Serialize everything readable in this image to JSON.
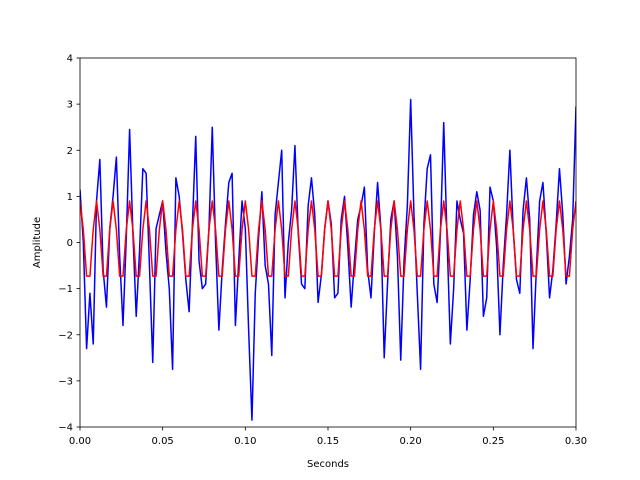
{
  "chart_data": {
    "type": "line",
    "xlabel": "Seconds",
    "ylabel": "Amplitude",
    "x": [
      0,
      0.002,
      0.004,
      0.006,
      0.008,
      0.01,
      0.012,
      0.014,
      0.016,
      0.018,
      0.02,
      0.022,
      0.024,
      0.026,
      0.028,
      0.03,
      0.032,
      0.034,
      0.036,
      0.038,
      0.04,
      0.042,
      0.044,
      0.046,
      0.048,
      0.05,
      0.052,
      0.054,
      0.056,
      0.058,
      0.06,
      0.062,
      0.064,
      0.066,
      0.068,
      0.07,
      0.072,
      0.074,
      0.076,
      0.078,
      0.08,
      0.082,
      0.084,
      0.086,
      0.088,
      0.09,
      0.092,
      0.094,
      0.096,
      0.098,
      0.1,
      0.102,
      0.104,
      0.106,
      0.108,
      0.11,
      0.112,
      0.114,
      0.116,
      0.118,
      0.12,
      0.122,
      0.124,
      0.126,
      0.128,
      0.13,
      0.132,
      0.134,
      0.136,
      0.138,
      0.14,
      0.142,
      0.144,
      0.146,
      0.148,
      0.15,
      0.152,
      0.154,
      0.156,
      0.158,
      0.16,
      0.162,
      0.164,
      0.166,
      0.168,
      0.17,
      0.172,
      0.174,
      0.176,
      0.178,
      0.18,
      0.182,
      0.184,
      0.186,
      0.188,
      0.19,
      0.192,
      0.194,
      0.196,
      0.198,
      0.2,
      0.202,
      0.204,
      0.206,
      0.208,
      0.21,
      0.212,
      0.214,
      0.216,
      0.218,
      0.22,
      0.222,
      0.224,
      0.226,
      0.228,
      0.23,
      0.232,
      0.234,
      0.236,
      0.238,
      0.24,
      0.242,
      0.244,
      0.246,
      0.248,
      0.25,
      0.252,
      0.254,
      0.256,
      0.258,
      0.26,
      0.262,
      0.264,
      0.266,
      0.268,
      0.27,
      0.272,
      0.274,
      0.276,
      0.278,
      0.28,
      0.282,
      0.284,
      0.286,
      0.288,
      0.29,
      0.292,
      0.294,
      0.296,
      0.298,
      0.3
    ],
    "series": [
      {
        "color": "#0000ff",
        "values": [
          1.15,
          0.0,
          -2.3,
          -1.1,
          -2.2,
          0.9,
          1.8,
          -0.6,
          -1.4,
          0.3,
          1.0,
          1.85,
          -0.3,
          -1.8,
          0.1,
          2.45,
          0.2,
          -1.6,
          -0.2,
          1.6,
          1.5,
          -0.5,
          -2.6,
          0.3,
          0.6,
          0.9,
          -0.2,
          -1.0,
          -2.75,
          1.4,
          1.0,
          0.2,
          -0.8,
          -1.5,
          0.4,
          2.3,
          -0.4,
          -1.0,
          -0.9,
          0.3,
          2.5,
          0.0,
          -1.9,
          -0.6,
          0.4,
          1.3,
          1.5,
          -1.8,
          -0.4,
          0.9,
          0.3,
          -1.9,
          -3.85,
          -1.1,
          0.1,
          1.1,
          -0.5,
          -0.9,
          -2.45,
          0.6,
          1.3,
          2.0,
          -1.2,
          0.0,
          0.7,
          2.1,
          0.2,
          -0.9,
          -1.0,
          0.8,
          1.4,
          0.6,
          -1.3,
          -0.7,
          0.3,
          0.9,
          0.4,
          -1.2,
          -1.1,
          0.5,
          1.0,
          -0.1,
          -1.4,
          -0.4,
          0.5,
          0.8,
          1.2,
          -0.6,
          -1.2,
          0.2,
          1.3,
          0.3,
          -2.5,
          -0.9,
          0.5,
          0.9,
          -0.3,
          -2.55,
          -0.4,
          0.8,
          3.1,
          0.6,
          -1.1,
          -2.75,
          0.4,
          1.6,
          1.9,
          -0.9,
          -1.3,
          0.2,
          2.6,
          0.1,
          -2.2,
          -1.0,
          0.9,
          0.5,
          0.2,
          -1.9,
          -0.8,
          0.6,
          1.1,
          0.7,
          -1.6,
          -1.2,
          1.2,
          0.9,
          -0.1,
          -2.0,
          -0.5,
          0.6,
          2.0,
          0.3,
          -0.8,
          -1.1,
          0.7,
          1.4,
          0.5,
          -2.3,
          -0.6,
          0.9,
          1.3,
          0.2,
          -1.2,
          -0.6,
          0.4,
          1.6,
          0.6,
          -0.9,
          -0.3,
          0.5,
          2.95
        ]
      },
      {
        "color": "#ff0000",
        "values": [
          0.9,
          0.28,
          -0.73,
          -0.73,
          0.28,
          0.9,
          0.28,
          -0.73,
          -0.73,
          0.28,
          0.9,
          0.28,
          -0.73,
          -0.73,
          0.28,
          0.9,
          0.28,
          -0.73,
          -0.73,
          0.28,
          0.9,
          0.28,
          -0.73,
          -0.73,
          0.28,
          0.9,
          0.28,
          -0.73,
          -0.73,
          0.28,
          0.9,
          0.28,
          -0.73,
          -0.73,
          0.28,
          0.9,
          0.28,
          -0.73,
          -0.73,
          0.28,
          0.9,
          0.28,
          -0.73,
          -0.73,
          0.28,
          0.9,
          0.28,
          -0.73,
          -0.73,
          0.28,
          0.9,
          0.28,
          -0.73,
          -0.73,
          0.28,
          0.9,
          0.28,
          -0.73,
          -0.73,
          0.28,
          0.9,
          0.28,
          -0.73,
          -0.73,
          0.28,
          0.9,
          0.28,
          -0.73,
          -0.73,
          0.28,
          0.9,
          0.28,
          -0.73,
          -0.73,
          0.28,
          0.9,
          0.28,
          -0.73,
          -0.73,
          0.28,
          0.9,
          0.28,
          -0.73,
          -0.73,
          0.28,
          0.9,
          0.28,
          -0.73,
          -0.73,
          0.28,
          0.9,
          0.28,
          -0.73,
          -0.73,
          0.28,
          0.9,
          0.28,
          -0.73,
          -0.73,
          0.28,
          0.9,
          0.28,
          -0.73,
          -0.73,
          0.28,
          0.9,
          0.28,
          -0.73,
          -0.73,
          0.28,
          0.9,
          0.28,
          -0.73,
          -0.73,
          0.28,
          0.9,
          0.28,
          -0.73,
          -0.73,
          0.28,
          0.9,
          0.28,
          -0.73,
          -0.73,
          0.28,
          0.9,
          0.28,
          -0.73,
          -0.73,
          0.28,
          0.9,
          0.28,
          -0.73,
          -0.73,
          0.28,
          0.9,
          0.28,
          -0.73,
          -0.73,
          0.28,
          0.9,
          0.28,
          -0.73,
          -0.73,
          0.28,
          0.9,
          0.28,
          -0.73,
          -0.73,
          0.28,
          0.9
        ]
      }
    ],
    "xlim": [
      0,
      0.3
    ],
    "xticks": [
      {
        "value": 0,
        "label": "0.00"
      },
      {
        "value": 0.05,
        "label": "0.05"
      },
      {
        "value": 0.1,
        "label": "0.10"
      },
      {
        "value": 0.15,
        "label": "0.15"
      },
      {
        "value": 0.2,
        "label": "0.20"
      },
      {
        "value": 0.25,
        "label": "0.25"
      },
      {
        "value": 0.3,
        "label": "0.30"
      }
    ],
    "ylim": [
      -4,
      4
    ],
    "yticks": [
      {
        "value": -4,
        "label": "−4"
      },
      {
        "value": -3,
        "label": "−3"
      },
      {
        "value": -2,
        "label": "−2"
      },
      {
        "value": -1,
        "label": "−1"
      },
      0,
      1,
      2,
      3,
      4
    ]
  }
}
